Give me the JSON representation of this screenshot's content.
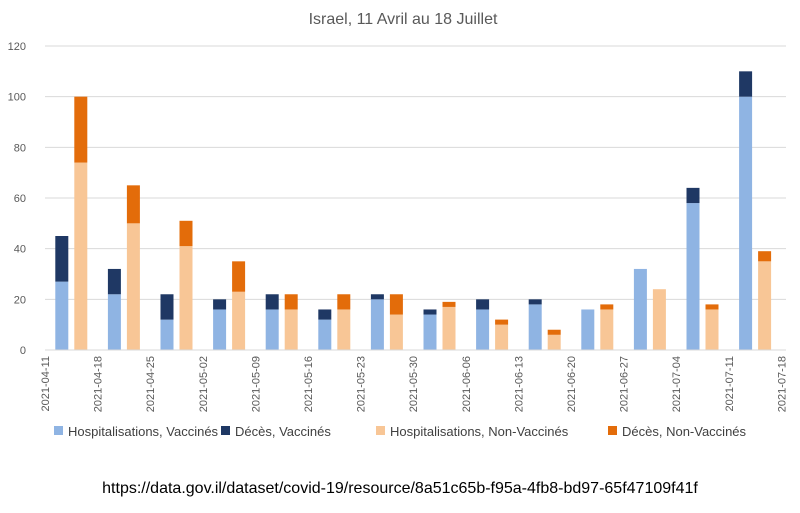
{
  "chart_data": {
    "type": "bar",
    "stacked": true,
    "title": "Israel, 11 Avril au 18 Juillet",
    "xlabel": "",
    "ylabel": "",
    "ylim": [
      0,
      120
    ],
    "yticks": [
      0,
      20,
      40,
      60,
      80,
      100,
      120
    ],
    "grid": true,
    "legend_position": "bottom",
    "x_tick_labels": [
      "2021-04-11",
      "2021-04-18",
      "2021-04-25",
      "2021-05-02",
      "2021-05-09",
      "2021-05-16",
      "2021-05-23",
      "2021-05-30",
      "2021-06-06",
      "2021-06-13",
      "2021-06-20",
      "2021-06-27",
      "2021-07-04",
      "2021-07-11",
      "2021-07-18"
    ],
    "weeks": [
      "2021-04-11",
      "2021-04-18",
      "2021-04-25",
      "2021-05-02",
      "2021-05-09",
      "2021-05-16",
      "2021-05-23",
      "2021-05-30",
      "2021-06-06",
      "2021-06-13",
      "2021-06-20",
      "2021-06-27",
      "2021-07-04",
      "2021-07-11"
    ],
    "groups": [
      {
        "name": "Vaccinés",
        "series": [
          {
            "name": "Hospitalisations, Vaccinés",
            "color": "#8FB4E3",
            "values": [
              27,
              22,
              12,
              16,
              16,
              12,
              20,
              14,
              16,
              18,
              16,
              32,
              58,
              100
            ]
          },
          {
            "name": "Décès, Vaccinés",
            "color": "#1F3864",
            "values": [
              18,
              10,
              10,
              4,
              6,
              4,
              2,
              2,
              4,
              2,
              0,
              0,
              6,
              10
            ]
          }
        ]
      },
      {
        "name": "Non-Vaccinés",
        "series": [
          {
            "name": "Hospitalisations, Non-Vaccinés",
            "color": "#F8C696",
            "values": [
              74,
              50,
              41,
              23,
              16,
              16,
              14,
              17,
              10,
              6,
              16,
              24,
              16,
              35
            ]
          },
          {
            "name": "Décès, Non-Vaccinés",
            "color": "#E36C0A",
            "values": [
              26,
              15,
              10,
              12,
              6,
              6,
              8,
              2,
              2,
              2,
              2,
              0,
              2,
              4
            ]
          }
        ]
      }
    ]
  },
  "source_text": "https://data.gov.il/dataset/covid-19/resource/8a51c65b-f95a-4fb8-bd97-65f47109f41f"
}
